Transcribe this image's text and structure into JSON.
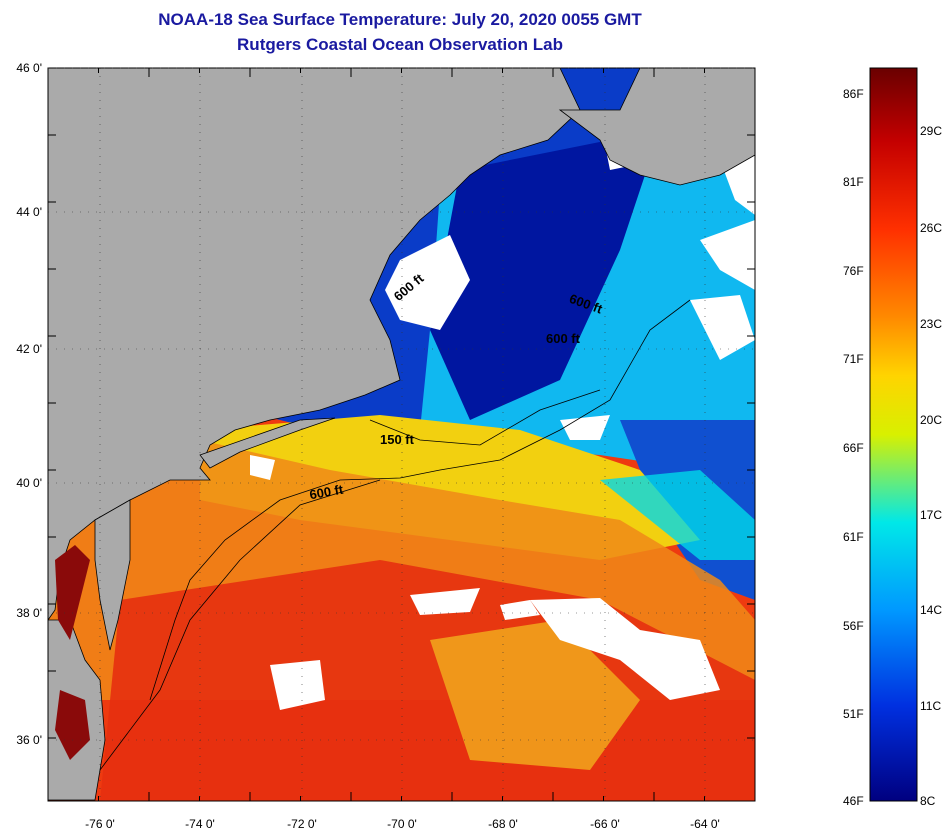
{
  "header": {
    "title": "NOAA-18 Sea Surface Temperature:  July 20, 2020 0055 GMT",
    "subtitle": "Rutgers Coastal Ocean Observation Lab"
  },
  "map": {
    "lat_labels": [
      "46 0'",
      "44 0'",
      "42 0'",
      "40 0'",
      "38 0'",
      "36 0'"
    ],
    "lon_labels": [
      "-76 0'",
      "-74 0'",
      "-72 0'",
      "-70 0'",
      "-68 0'",
      "-66 0'",
      "-64 0'"
    ],
    "contour_labels": [
      "600 ft",
      "600 ft",
      "600 ft",
      "150 ft",
      "600 ft"
    ],
    "colors": {
      "land": "#aaaaaa",
      "cloud": "#ffffff",
      "coastline": "#000000",
      "warm_water": "#ee3300",
      "mid_water": "#ffcc00",
      "cool_water": "#00ccff",
      "cold_water": "#0022aa"
    }
  },
  "colorbar": {
    "f_labels": [
      "86F",
      "81F",
      "76F",
      "71F",
      "66F",
      "61F",
      "56F",
      "51F",
      "46F"
    ],
    "c_labels": [
      "29C",
      "26C",
      "23C",
      "20C",
      "17C",
      "14C",
      "11C",
      "8C"
    ],
    "stops": [
      "#6a0000",
      "#c40000",
      "#ff3000",
      "#ff8a00",
      "#ffd400",
      "#d8f000",
      "#00e8e8",
      "#0098ff",
      "#0030e0",
      "#000080"
    ]
  }
}
